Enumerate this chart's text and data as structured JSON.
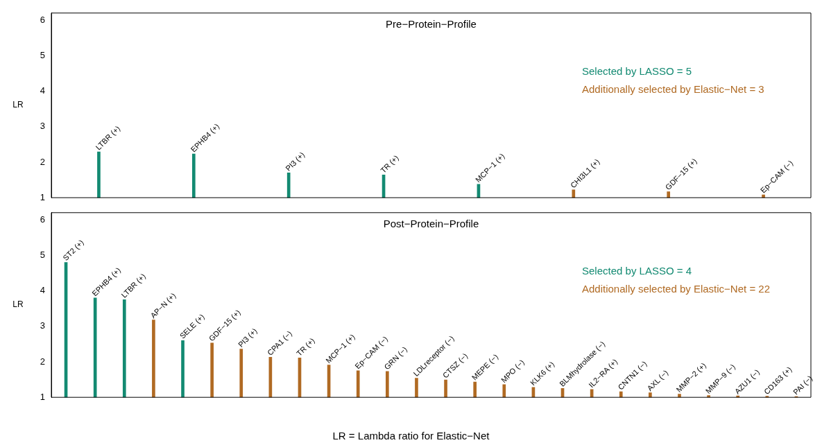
{
  "chart_data": [
    {
      "type": "bar",
      "title": "Pre−Protein−Profile",
      "ylabel": "LR",
      "categories": [
        "LTBR (+)",
        "EPHB4 (+)",
        "PI3 (+)",
        "TR (+)",
        "MCP−1 (+)",
        "CHI3L1 (+)",
        "GDF−15 (+)",
        "Ep−CAM (−)"
      ],
      "series": [
        {
          "name": "Selected by LASSO = 5",
          "color": "#138a72",
          "values": [
            2.29,
            2.23,
            1.7,
            1.64,
            1.38,
            null,
            null,
            null
          ]
        },
        {
          "name": "Additionally selected by Elastic−Net = 3",
          "color": "#b06a23",
          "values": [
            null,
            null,
            null,
            null,
            null,
            1.22,
            1.17,
            1.08
          ]
        }
      ],
      "ylim": [
        1,
        6.2
      ],
      "yticks": [
        1,
        2,
        3,
        4,
        5,
        6
      ],
      "grid": false,
      "legend": "right",
      "tick_labels": "y"
    },
    {
      "type": "bar",
      "title": "Post−Protein−Profile",
      "ylabel": "LR",
      "categories": [
        "ST2 (+)",
        "EPHB4 (+)",
        "LTBR (+)",
        "AP−N (+)",
        "SELE (+)",
        "GDF−15 (+)",
        "PI3 (+)",
        "CPA1 (−)",
        "TR (+)",
        "MCP−1 (+)",
        "Ep−CAM (−)",
        "GRN (−)",
        "LDLreceptor (−)",
        "CTSZ (−)",
        "MEPE (−)",
        "MPO (−)",
        "KLK6 (+)",
        "BLMhydrolase (−)",
        "IL2−RA (+)",
        "CNTN1 (−)",
        "AXL (−)",
        "MMP−2 (+)",
        "MMP−9 (−)",
        "AZU1 (−)",
        "CD163 (+)",
        "PAI (−)"
      ],
      "series": [
        {
          "name": "Selected by LASSO = 4",
          "color": "#138a72",
          "values": [
            4.8,
            3.8,
            3.75,
            null,
            2.6,
            null,
            null,
            null,
            null,
            null,
            null,
            null,
            null,
            null,
            null,
            null,
            null,
            null,
            null,
            null,
            null,
            null,
            null,
            null,
            null,
            null
          ]
        },
        {
          "name": "Additionally selected by Elastic−Net = 22",
          "color": "#b06a23",
          "values": [
            null,
            null,
            null,
            3.18,
            null,
            2.53,
            2.36,
            2.13,
            2.11,
            1.91,
            1.75,
            1.73,
            1.54,
            1.49,
            1.43,
            1.36,
            1.28,
            1.25,
            1.22,
            1.16,
            1.13,
            1.09,
            1.05,
            1.04,
            1.03,
            1.02
          ]
        }
      ],
      "ylim": [
        1,
        6.2
      ],
      "yticks": [
        1,
        2,
        3,
        4,
        5,
        6
      ],
      "grid": false,
      "legend": "right",
      "tick_labels": "y",
      "annotations": [
        "LR = Lambda ratio for Elastic−Net"
      ]
    }
  ]
}
